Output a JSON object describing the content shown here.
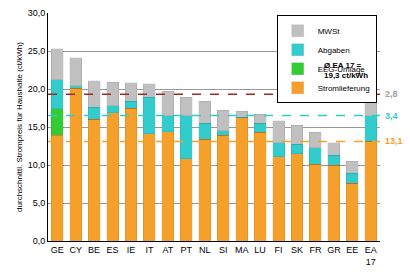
{
  "chart_data": {
    "type": "bar",
    "stacked": true,
    "grid": true,
    "legend": "top right",
    "data_labels": false,
    "y_label": "durchschnittl. Strompreis für Haushalte (ct/kWh)",
    "categories": [
      "GE",
      "CY",
      "BE",
      "ES",
      "IE",
      "IT",
      "AT",
      "PT",
      "NL",
      "SI",
      "MA",
      "LU",
      "FI",
      "SK",
      "FR",
      "GR",
      "EE",
      "EA 17"
    ],
    "series": [
      {
        "name": "Stromlieferung",
        "color": "#f5a02a",
        "values": [
          13.9,
          20.1,
          16.0,
          16.9,
          17.5,
          14.1,
          14.4,
          10.8,
          13.4,
          13.9,
          16.2,
          14.3,
          11.1,
          11.5,
          10.1,
          10.0,
          7.6,
          13.1
        ]
      },
      {
        "name": "EEG-Umlage",
        "color": "#33cc33",
        "values": [
          3.5,
          0,
          0,
          0,
          0,
          0,
          0,
          0,
          0,
          0,
          0,
          0,
          0,
          0,
          0,
          0,
          0,
          0
        ]
      },
      {
        "name": "Abgaben",
        "color": "#33cccc",
        "values": [
          3.8,
          0.3,
          1.6,
          0.9,
          0.9,
          4.8,
          2.1,
          5.7,
          2.1,
          0.6,
          0.1,
          1.2,
          1.8,
          1.2,
          2.2,
          1.3,
          1.3,
          3.4
        ]
      },
      {
        "name": "MWSt",
        "color": "#c0c0c0",
        "values": [
          4.1,
          3.7,
          3.5,
          3.1,
          2.4,
          1.8,
          3.2,
          2.4,
          2.9,
          2.7,
          0.8,
          1.2,
          2.9,
          2.5,
          2.0,
          1.6,
          1.6,
          2.8
        ]
      }
    ],
    "ylim": [
      0,
      30
    ],
    "yticks": [
      {
        "value": 0,
        "label": "0,0"
      },
      {
        "value": 5,
        "label": "5,0"
      },
      {
        "value": 10,
        "label": "10,0"
      },
      {
        "value": 15,
        "label": "15,0"
      },
      {
        "value": 20,
        "label": "20,0"
      },
      {
        "value": 25,
        "label": "25,0"
      },
      {
        "value": 30,
        "label": "30,0"
      }
    ],
    "reference_lines": [
      {
        "value": 19.3,
        "color": "#a02a2a",
        "line_style": "dash",
        "label": "2,8",
        "label_color": "#a0a0a0"
      },
      {
        "value": 16.5,
        "color": "#33cccc",
        "line_style": "dash",
        "label": "3,4",
        "label_color": "#33cccc"
      },
      {
        "value": 13.1,
        "color": "#f5a02a",
        "line_style": "dash",
        "label": "13,1",
        "label_color": "#f5a02a"
      }
    ],
    "annotations": [
      {
        "text": [
          "Ø EA 17 =",
          "19,3 ct/kWh"
        ]
      }
    ]
  }
}
